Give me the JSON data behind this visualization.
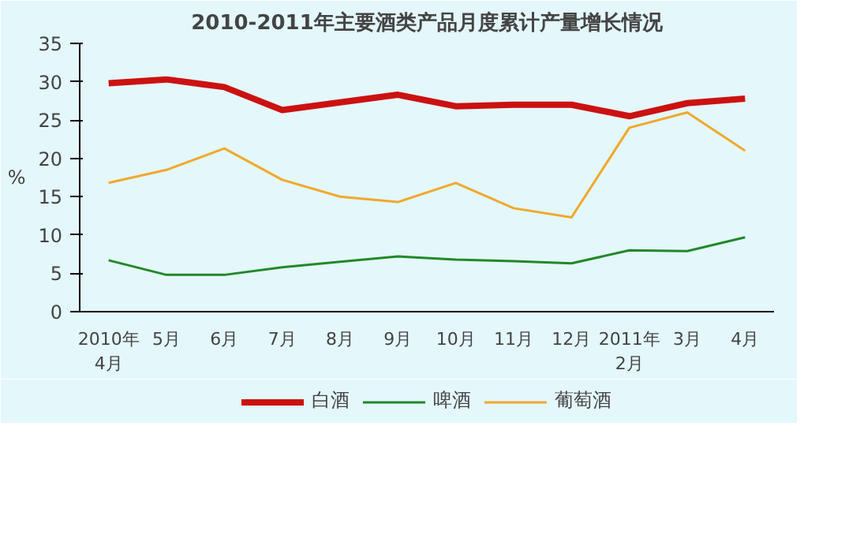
{
  "chart_data": {
    "type": "line",
    "title": "2010-2011年主要酒类产品月度累计产量增长情况",
    "ylabel": "%",
    "categories": [
      "2010年\n4月",
      "5月",
      "6月",
      "7月",
      "8月",
      "9月",
      "10月",
      "11月",
      "12月",
      "2011年\n2月",
      "3月",
      "4月"
    ],
    "series": [
      {
        "name": "白酒",
        "color": "#cc1111",
        "values": [
          29.8,
          30.3,
          29.3,
          26.3,
          27.3,
          28.3,
          26.8,
          27.0,
          27.0,
          25.5,
          27.2,
          27.8
        ]
      },
      {
        "name": "啤酒",
        "color": "#22882a",
        "values": [
          6.7,
          4.8,
          4.8,
          5.8,
          6.5,
          7.2,
          6.8,
          6.6,
          6.3,
          8.0,
          7.9,
          9.7
        ]
      },
      {
        "name": "葡萄酒",
        "color": "#f0a830",
        "values": [
          16.8,
          18.5,
          21.3,
          17.2,
          15.0,
          14.3,
          16.8,
          13.5,
          12.3,
          24.0,
          26.0,
          21.0
        ]
      }
    ],
    "ylim": [
      0,
      35
    ],
    "yticks": [
      0,
      5,
      10,
      15,
      20,
      25,
      30,
      35
    ],
    "grid": false,
    "legend": "bottom",
    "marker": "none",
    "line_style": "solid"
  }
}
